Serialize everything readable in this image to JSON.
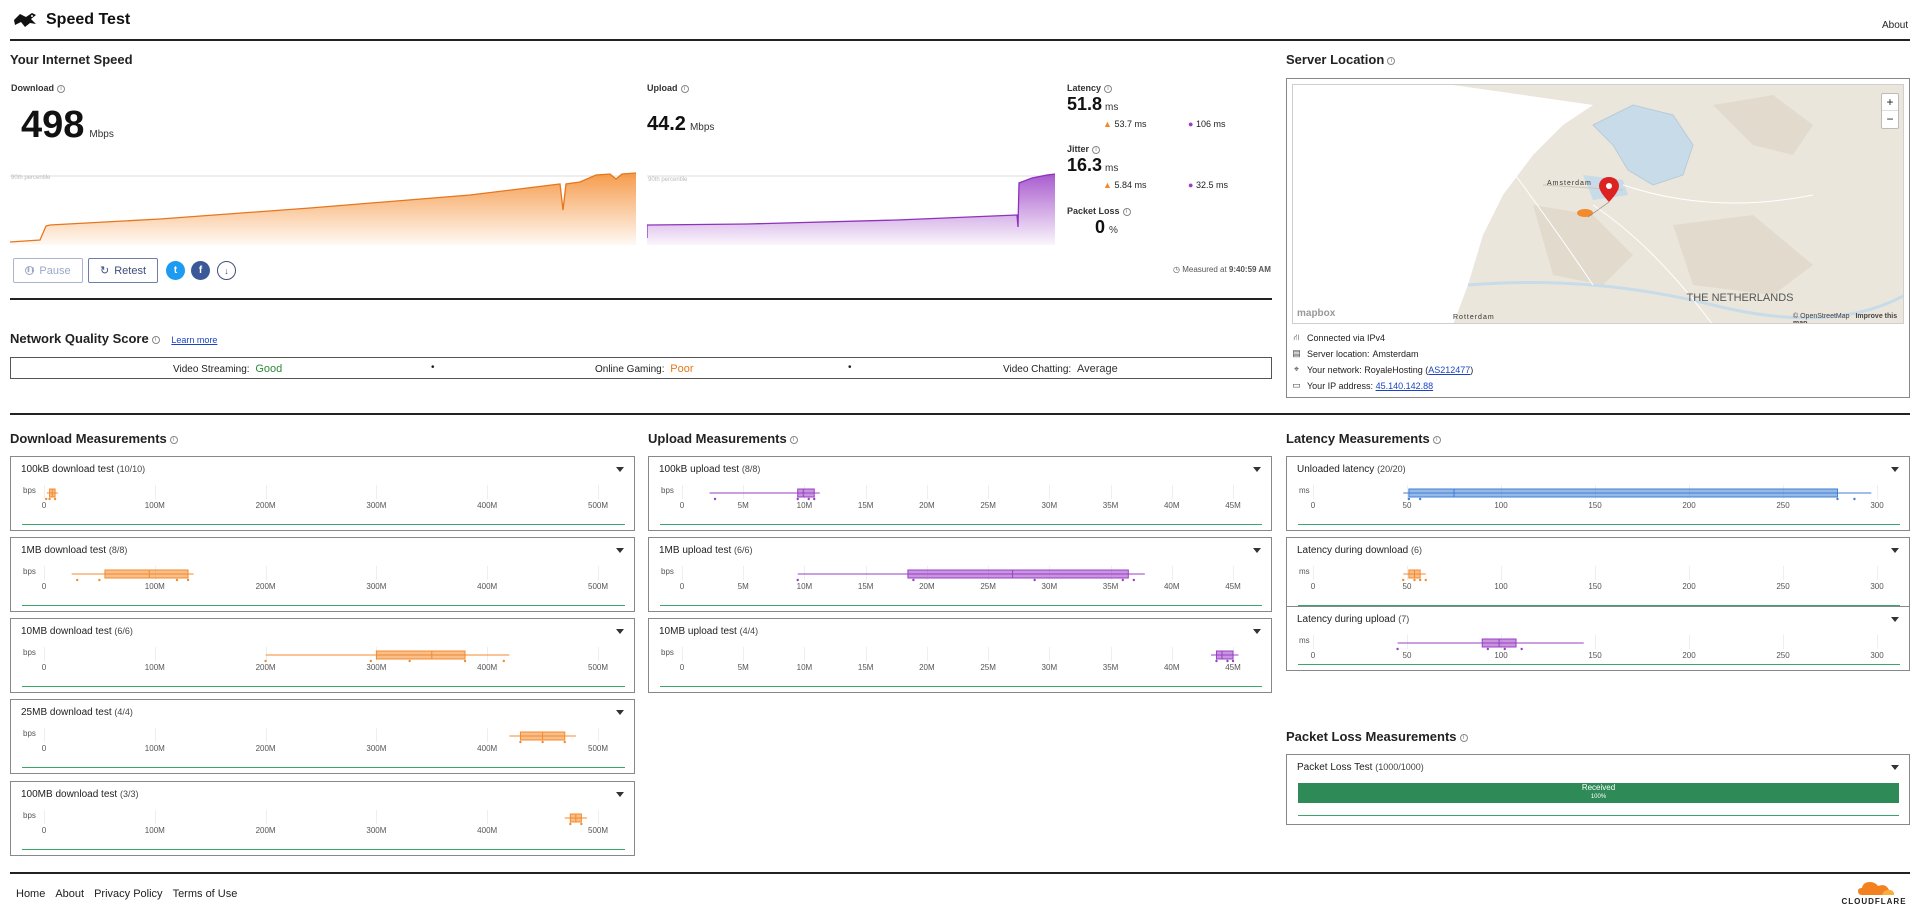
{
  "header": {
    "title": "Speed Test",
    "about": "About"
  },
  "speed": {
    "section_title": "Your Internet Speed",
    "download": {
      "label": "Download",
      "value": "498",
      "unit": "Mbps"
    },
    "upload": {
      "label": "Upload",
      "value": "44.2",
      "unit": "Mbps"
    },
    "percentile_label": "90th percentile",
    "latency": {
      "label": "Latency",
      "value": "51.8",
      "unit": "ms",
      "down": "53.7 ms",
      "up": "106 ms"
    },
    "jitter": {
      "label": "Jitter",
      "value": "16.3",
      "unit": "ms",
      "down": "5.84 ms",
      "up": "32.5 ms"
    },
    "packet_loss": {
      "label": "Packet Loss",
      "value": "0",
      "unit": "%"
    },
    "pause_label": "Pause",
    "retest_label": "Retest",
    "measured_prefix": "Measured at",
    "measured_time": "9:40:59 AM"
  },
  "server": {
    "section_title": "Server Location",
    "map_city": "Amsterdam",
    "map_country": "THE NETHERLANDS",
    "map_rotterdam": "Rotterdam",
    "map_attr": "© OpenStreetMap",
    "map_improve": "Improve this map",
    "mapbox": "mapbox",
    "zoom_in": "+",
    "zoom_out": "−",
    "connected": "Connected via IPv4",
    "server_location_prefix": "Server location:",
    "server_location": "Amsterdam",
    "network_prefix": "Your network:",
    "network": "RoyaleHosting (",
    "asn": "AS212477",
    "network_suffix": ")",
    "ip_prefix": "Your IP address:",
    "ip": "45.140.142.88"
  },
  "quality": {
    "section_title": "Network Quality Score",
    "learn_more": "Learn more",
    "items": [
      {
        "label": "Video Streaming:",
        "value": "Good",
        "color": "#2e8a3a"
      },
      {
        "label": "Online Gaming:",
        "value": "Poor",
        "color": "#e07a1a"
      },
      {
        "label": "Video Chatting:",
        "value": "Average",
        "color": "#333333"
      }
    ],
    "separator": "•"
  },
  "download_meas": {
    "section_title": "Download Measurements",
    "unit": "bps",
    "ticks": [
      "0",
      "100M",
      "200M",
      "300M",
      "400M",
      "500M"
    ],
    "tests": [
      {
        "title": "100kB download test",
        "count": "(10/10)"
      },
      {
        "title": "1MB download test",
        "count": "(8/8)"
      },
      {
        "title": "10MB download test",
        "count": "(6/6)"
      },
      {
        "title": "25MB download test",
        "count": "(4/4)"
      },
      {
        "title": "100MB download test",
        "count": "(3/3)"
      }
    ]
  },
  "upload_meas": {
    "section_title": "Upload Measurements",
    "unit": "bps",
    "ticks": [
      "0",
      "5M",
      "10M",
      "15M",
      "20M",
      "25M",
      "30M",
      "35M",
      "40M",
      "45M"
    ],
    "tests": [
      {
        "title": "100kB upload test",
        "count": "(8/8)"
      },
      {
        "title": "1MB upload test",
        "count": "(6/6)"
      },
      {
        "title": "10MB upload test",
        "count": "(4/4)"
      }
    ]
  },
  "latency_meas": {
    "section_title": "Latency Measurements",
    "unit": "ms",
    "ticks": [
      "0",
      "50",
      "100",
      "150",
      "200",
      "250",
      "300"
    ],
    "tests": [
      {
        "title": "Unloaded latency",
        "count": "(20/20)"
      },
      {
        "title": "Latency during download",
        "count": "(6)"
      },
      {
        "title": "Latency during upload",
        "count": "(7)"
      }
    ]
  },
  "packet_meas": {
    "section_title": "Packet Loss Measurements",
    "test_title": "Packet Loss Test",
    "count": "(1000/1000)",
    "bar_label": "Received",
    "bar_pct": "100%"
  },
  "footer": {
    "links": [
      "Home",
      "About",
      "Privacy Policy",
      "Terms of Use"
    ],
    "brand": "CLOUDFLARE"
  },
  "colors": {
    "download": "#f48a2c",
    "upload": "#9a3fc5",
    "latency": "#3f7fd6",
    "green": "#2e8b57"
  }
}
